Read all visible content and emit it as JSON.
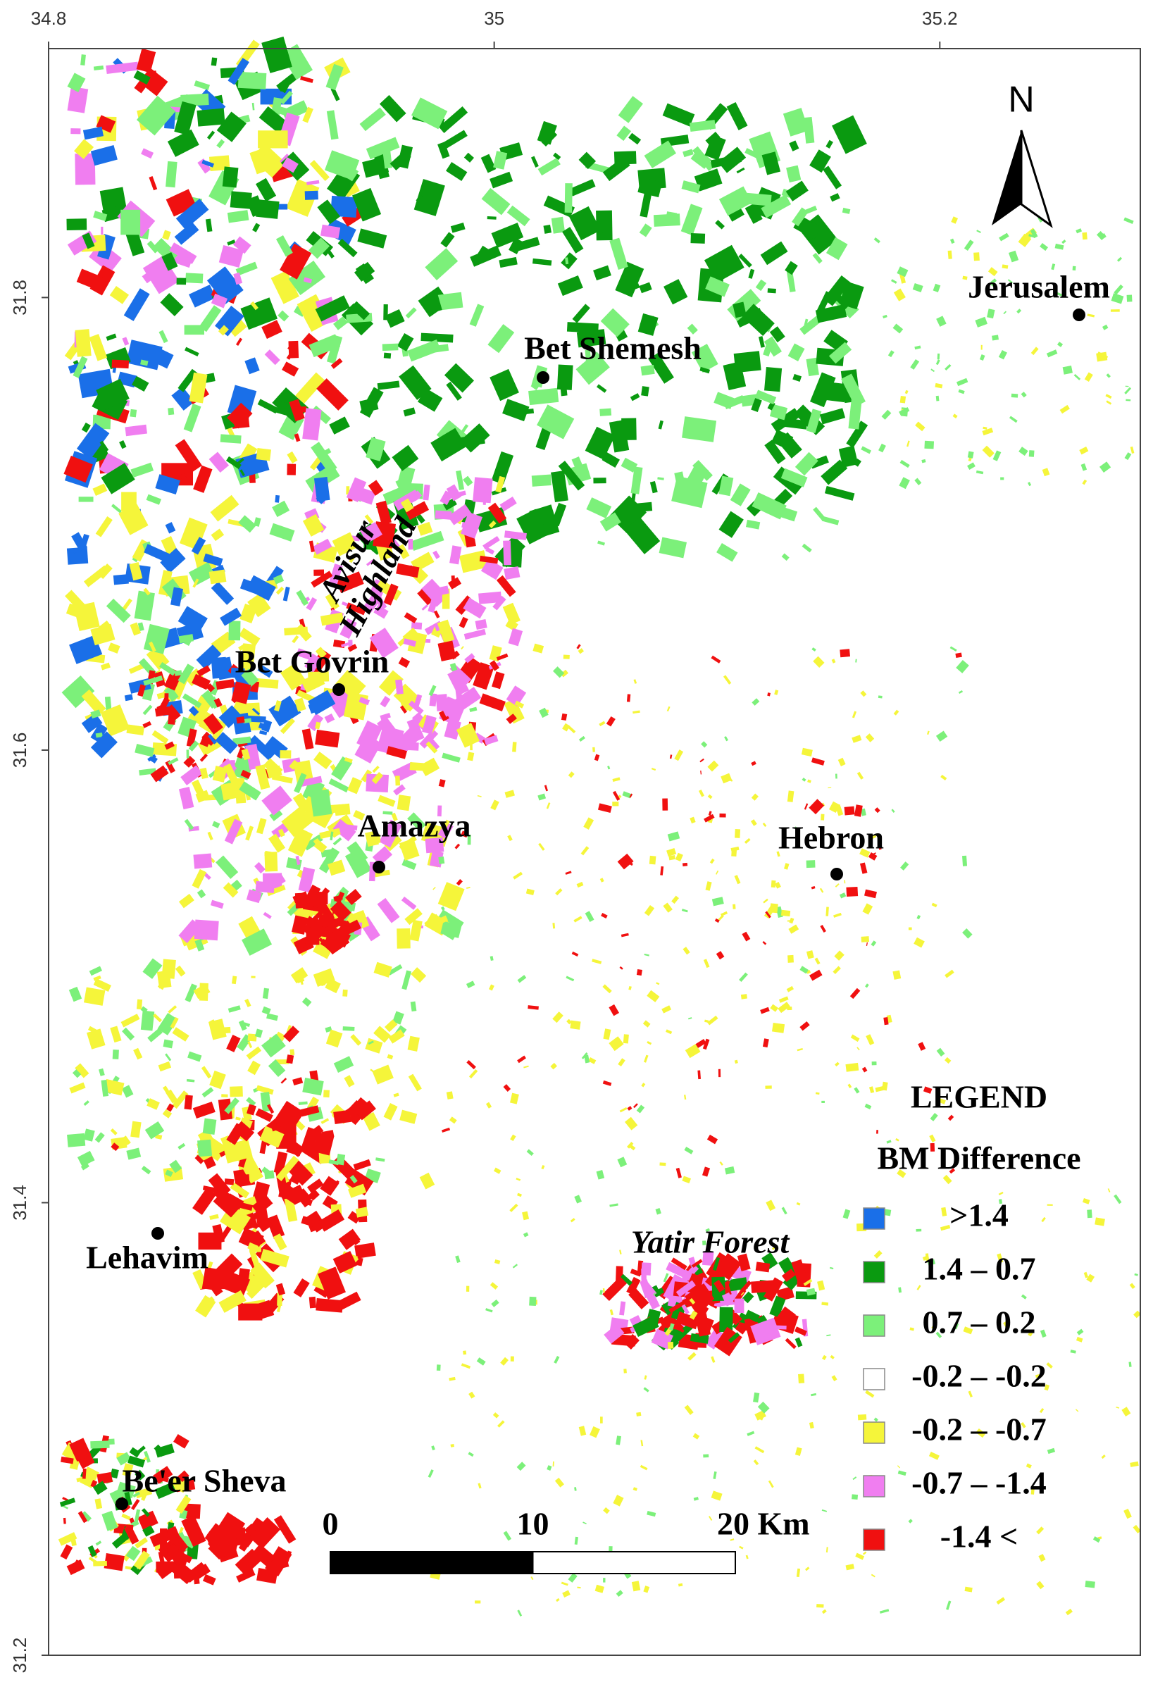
{
  "map": {
    "xlim": [
      34.8,
      35.29
    ],
    "ylim": [
      31.2,
      31.91
    ],
    "xticks": [
      34.8,
      35,
      35.2
    ],
    "yticks": [
      31.2,
      31.4,
      31.6,
      31.8
    ],
    "north": "N",
    "places": [
      {
        "name": "Jerusalem"
      },
      {
        "name": "Bet Shemesh"
      },
      {
        "name": "Bet Govrin"
      },
      {
        "name": "Amazya"
      },
      {
        "name": "Hebron"
      },
      {
        "name": "Lehavim"
      },
      {
        "name": "Be'er Sheva"
      }
    ],
    "annotations": {
      "avisur": [
        "Avisur",
        "Highland"
      ],
      "yatir": "Yatir Forest"
    },
    "legend": {
      "title": "LEGEND",
      "subtitle": "BM Difference",
      "items": [
        {
          "label": ">1.4",
          "color": "#1a6fe8"
        },
        {
          "label": "1.4 – 0.7",
          "color": "#0a9a10"
        },
        {
          "label": "0.7 – 0.2",
          "color": "#7cf07a"
        },
        {
          "label": "-0.2 – -0.2",
          "color": "#ffffff"
        },
        {
          "label": "-0.2 – -0.7",
          "color": "#f5f53a"
        },
        {
          "label": "-0.7 – -1.4",
          "color": "#f07ef0"
        },
        {
          "label": "-1.4 <",
          "color": "#f01010"
        }
      ]
    },
    "scale_bar": {
      "lim": [
        0,
        20
      ],
      "ticks": [
        0,
        10,
        {
          "value": 20,
          "label": "20 Km"
        }
      ]
    }
  }
}
